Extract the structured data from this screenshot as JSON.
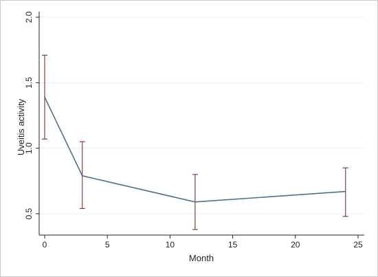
{
  "chart_data": {
    "type": "line",
    "title": "",
    "xlabel": "Month",
    "ylabel": "Uveitis activity",
    "xlim": [
      0,
      25
    ],
    "ylim": [
      0.5,
      2.0
    ],
    "xticks": [
      0,
      5,
      10,
      15,
      20,
      25
    ],
    "xtick_labels": [
      "0",
      "5",
      "10",
      "15",
      "20",
      "25"
    ],
    "yticks": [
      0.5,
      1.0,
      1.5,
      2.0
    ],
    "ytick_labels": [
      "0.5",
      "1.0",
      "1.5",
      "2.0"
    ],
    "grid": "horizontal",
    "legend": "none",
    "series": [
      {
        "x": [
          0,
          3,
          12,
          24
        ],
        "y": [
          1.39,
          0.79,
          0.59,
          0.67
        ],
        "ci_low": [
          1.07,
          0.54,
          0.38,
          0.48
        ],
        "ci_high": [
          1.71,
          1.05,
          0.8,
          0.85
        ]
      }
    ],
    "colors": {
      "line": "#4f6f86",
      "error_bars": "#8b3a3a",
      "grid": "#ececec",
      "axis": "#222222"
    }
  }
}
